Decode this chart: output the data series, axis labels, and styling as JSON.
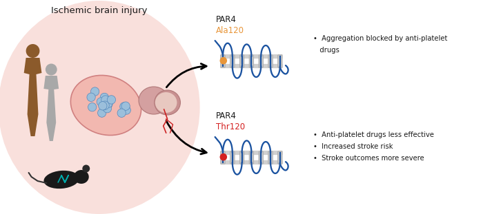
{
  "title_text": "Ischemic brain injury",
  "bg_color": "#ffffff",
  "pink_bg": "#f9e0dc",
  "blue_color": "#1a52a0",
  "gray_helix_fill": "#c8c8c8",
  "gray_helix_edge": "#aaaaaa",
  "orange_color": "#e8963a",
  "red_color": "#d42020",
  "dark_text": "#1a1a1a",
  "par4_label": "PAR4",
  "ala_label": "Ala120",
  "thr_label": "Thr120",
  "bullet1_1": "•  Aggregation blocked by anti-platelet",
  "bullet1_2": "   drugs",
  "bullet2_1": "•  Anti-platelet drugs less effective",
  "bullet2_2": "•  Increased stroke risk",
  "bullet2_3": "•  Stroke outcomes more severe",
  "brown_person": "#8B5A2B",
  "gray_person": "#b0b0b0"
}
